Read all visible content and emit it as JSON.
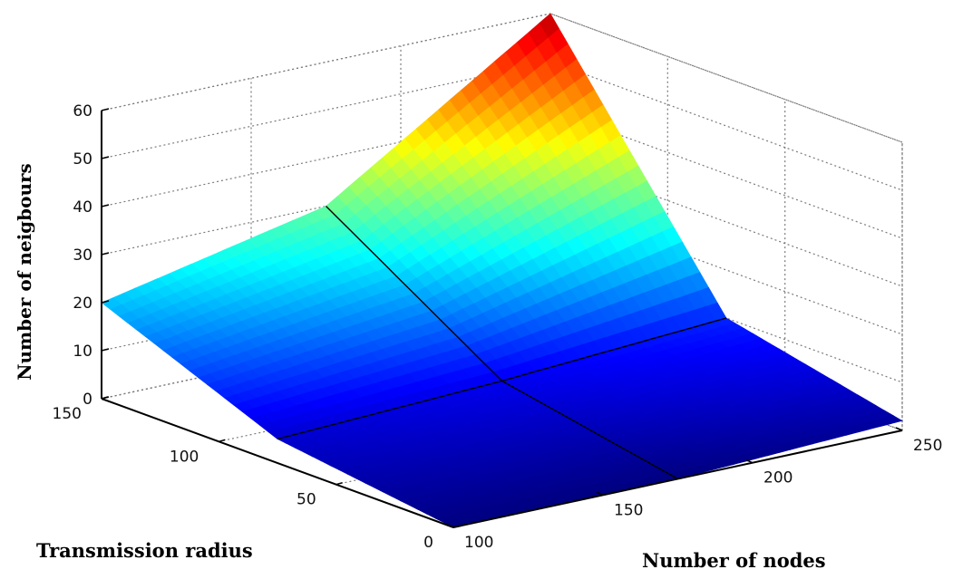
{
  "chart_data": {
    "type": "surface",
    "x": {
      "label": "Number of nodes",
      "range": [
        100,
        250
      ],
      "ticks": [
        100,
        150,
        200,
        250
      ]
    },
    "y": {
      "label": "Transmission radius",
      "range": [
        0,
        150
      ],
      "ticks": [
        0,
        50,
        100,
        150
      ]
    },
    "z": {
      "label": "Number of neigbours",
      "range": [
        0,
        60
      ],
      "ticks": [
        0,
        10,
        20,
        30,
        40,
        50,
        60
      ]
    },
    "surface": {
      "x": [
        100,
        175,
        250
      ],
      "y": [
        0,
        75,
        150
      ],
      "z": [
        [
          0,
          5,
          20
        ],
        [
          0,
          7,
          30
        ],
        [
          2,
          10,
          60
        ]
      ]
    },
    "colormap": "jet",
    "grid": true
  }
}
